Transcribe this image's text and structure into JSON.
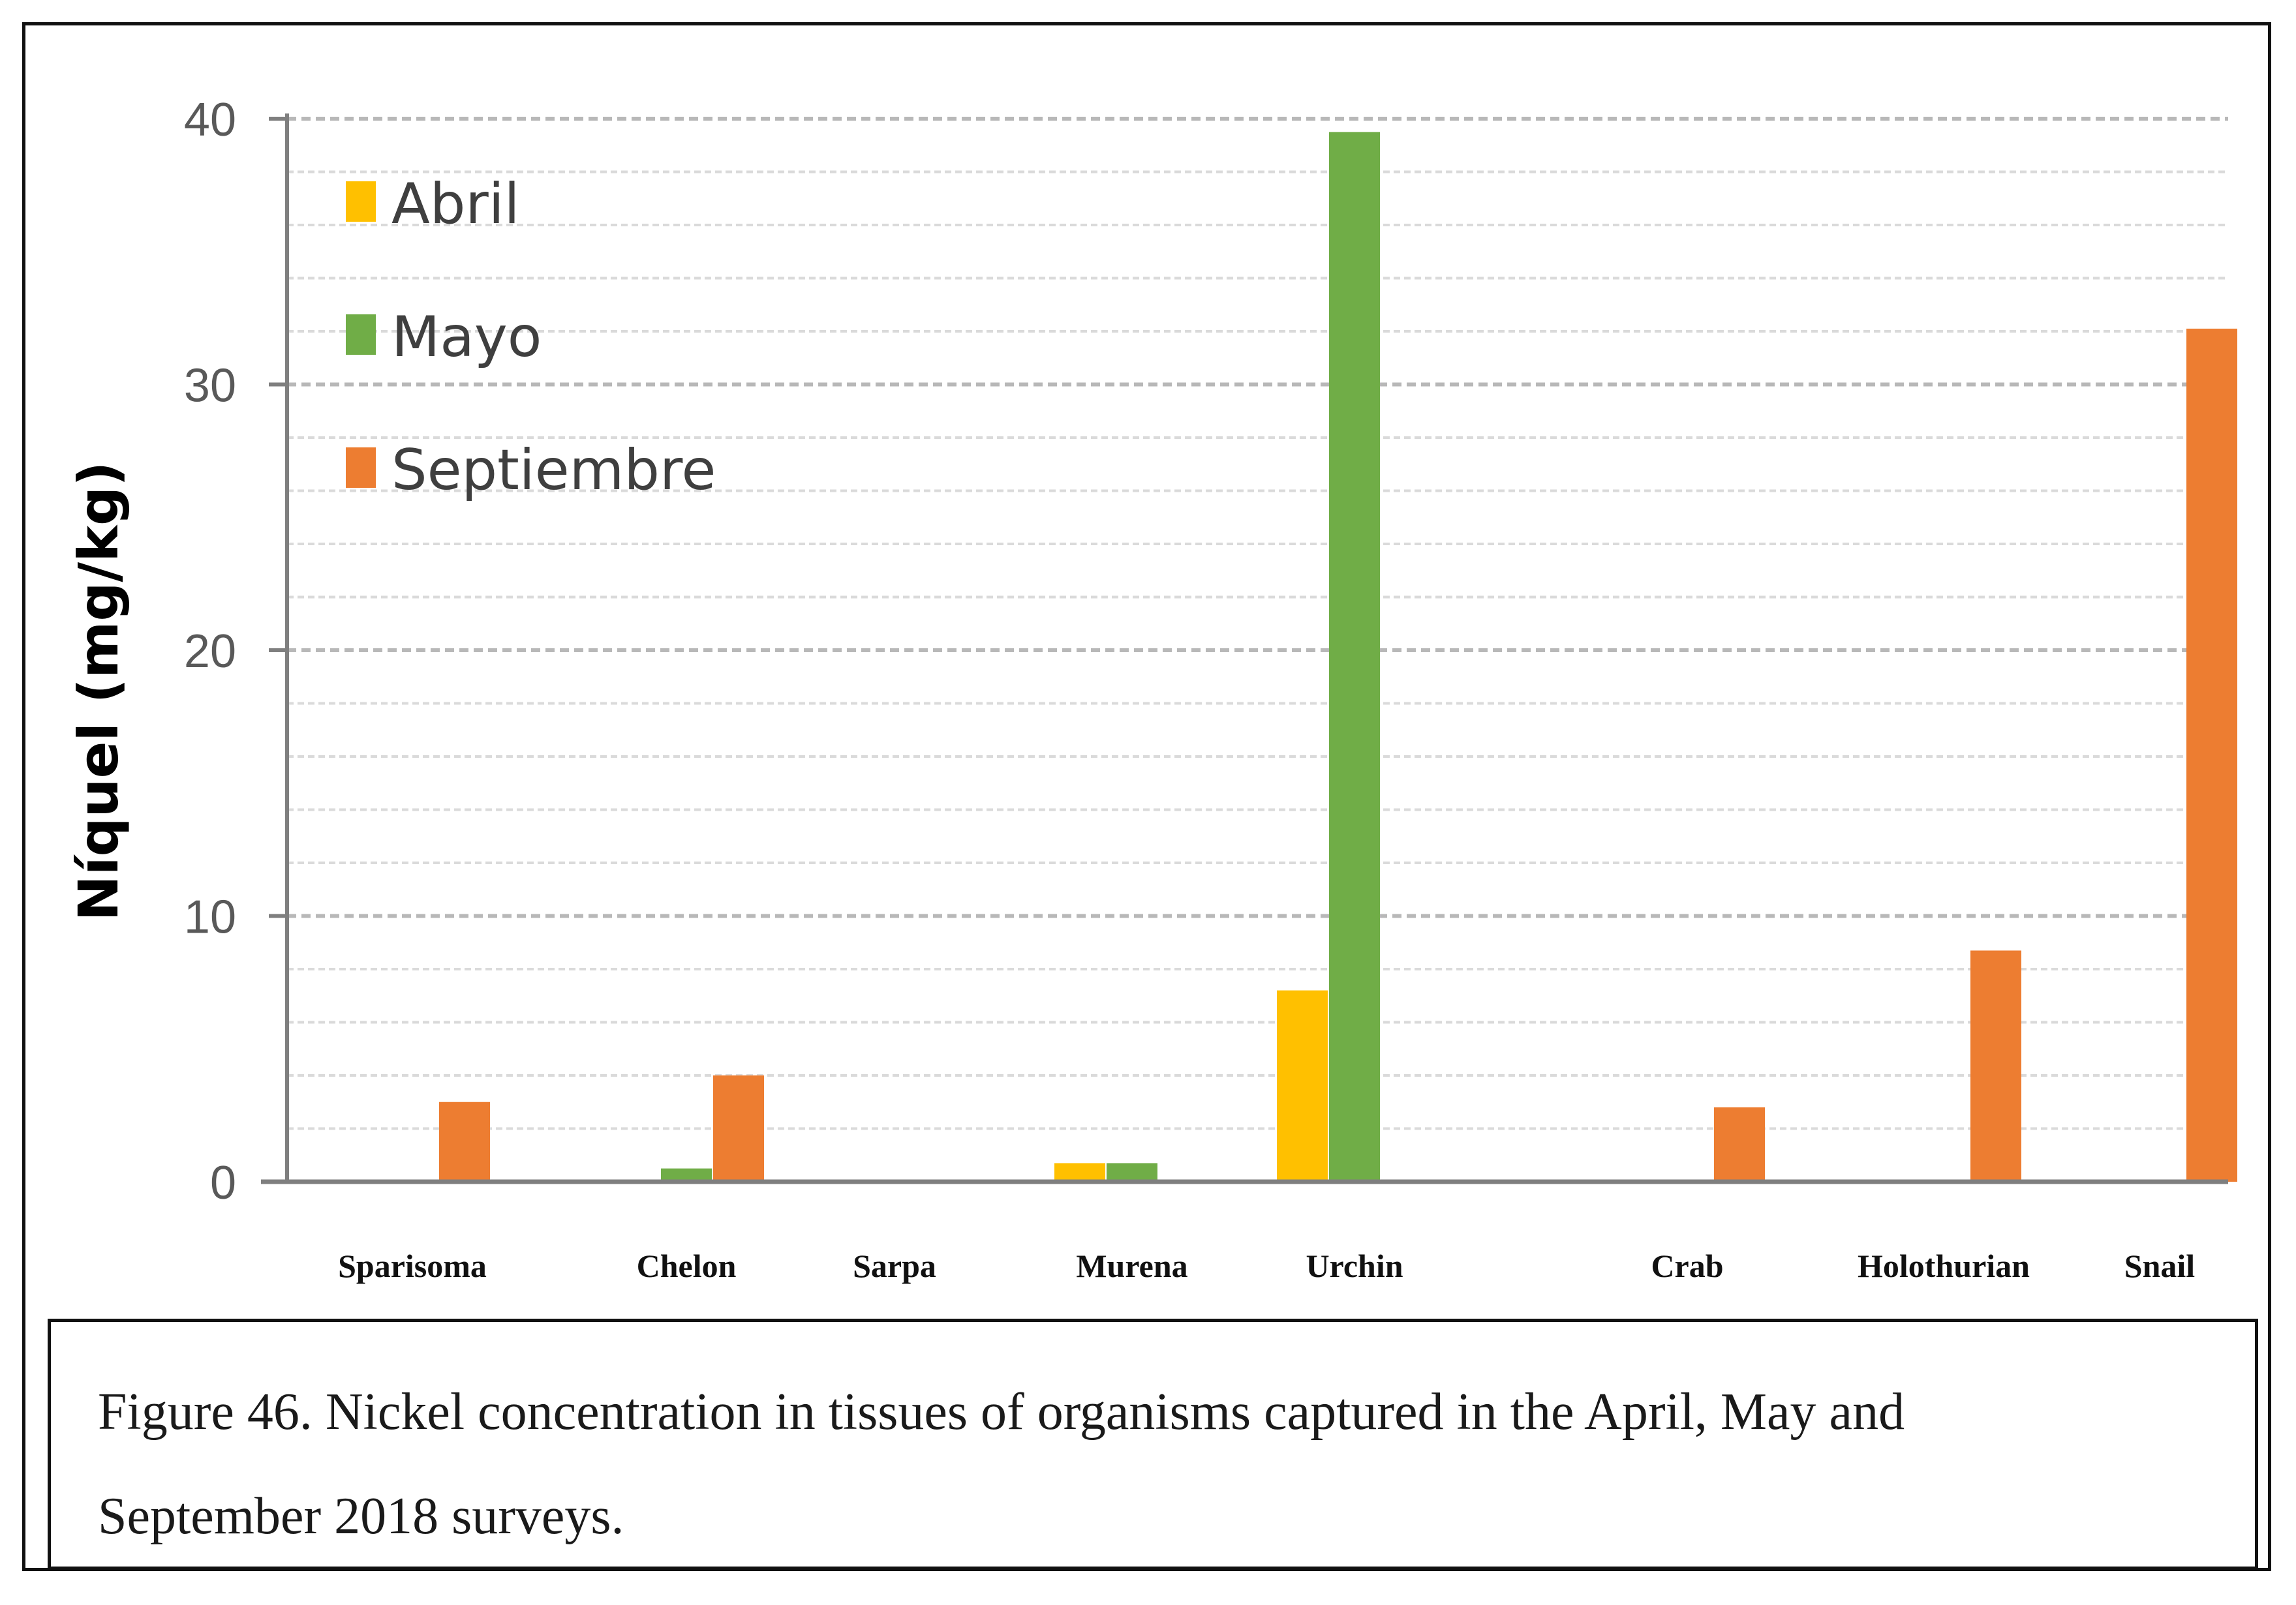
{
  "chart_data": {
    "type": "bar",
    "ylabel": "Níquel (mg/kg)",
    "xlabel": "",
    "ylim": [
      0,
      40
    ],
    "yticks": [
      "0",
      "10",
      "20",
      "30",
      "40"
    ],
    "grid": true,
    "legend_position": "top-left",
    "categories": [
      "Sparisoma",
      "Chelon",
      "Sarpa",
      "Murena",
      "Urchin",
      "Crab",
      "Holothurian",
      "Snail"
    ],
    "series": [
      {
        "name": "Abril",
        "color": "#FFC000",
        "values": [
          0,
          0,
          0,
          0.7,
          7.2,
          0,
          0,
          0
        ]
      },
      {
        "name": "Mayo",
        "color": "#70AD47",
        "values": [
          0,
          0.5,
          0,
          0.7,
          39.5,
          0,
          0,
          0
        ]
      },
      {
        "name": "Septiembre",
        "color": "#ED7D31",
        "values": [
          3.0,
          4.0,
          0,
          0,
          0,
          2.8,
          8.7,
          32.1
        ]
      }
    ]
  },
  "caption": {
    "line1": "Figure 46. Nickel concentration in tissues of organisms captured in the April, May and",
    "line2": "September 2018 surveys."
  }
}
